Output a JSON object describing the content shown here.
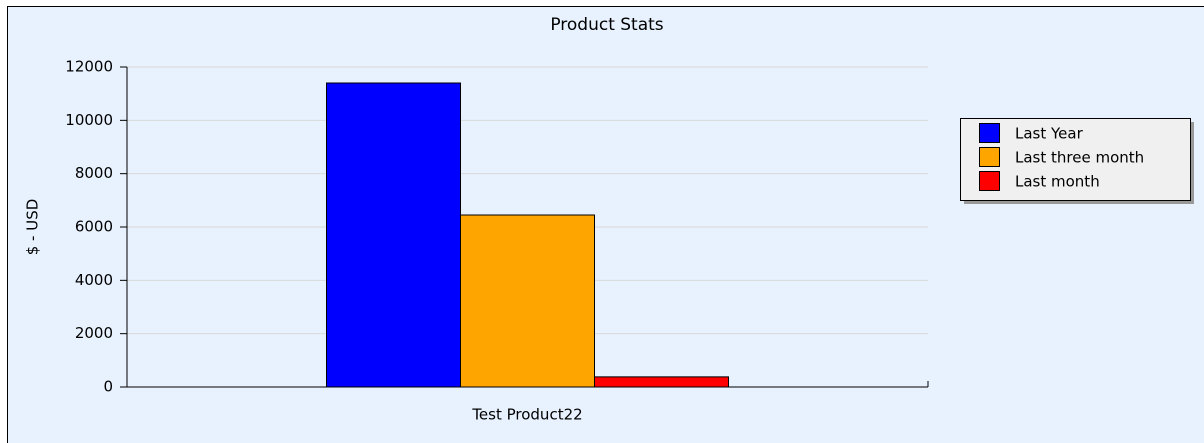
{
  "chart_data": {
    "type": "bar",
    "title": "Product Stats",
    "y_label": "$ - USD",
    "categories": [
      "Test Product22"
    ],
    "series": [
      {
        "name": "Last Year",
        "color": "#0000ff",
        "values": [
          11400
        ]
      },
      {
        "name": "Last three month",
        "color": "#ffa500",
        "values": [
          6450
        ]
      },
      {
        "name": "Last month",
        "color": "#ff0000",
        "values": [
          380
        ]
      }
    ],
    "ylim": [
      0,
      12000
    ],
    "yticks": [
      0,
      2000,
      4000,
      6000,
      8000,
      10000,
      12000
    ],
    "grid": true,
    "legend": "right"
  }
}
